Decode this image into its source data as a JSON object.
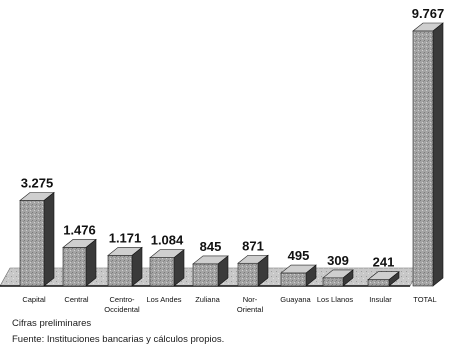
{
  "chart_data": {
    "type": "bar",
    "categories": [
      "Capital",
      "Central",
      "Centro-\nOccidental",
      "Los Andes",
      "Zuliana",
      "Nor-\nOriental",
      "Guayana",
      "Los Llanos",
      "Insular",
      "TOTAL"
    ],
    "values": [
      3275,
      1476,
      1171,
      1084,
      845,
      871,
      495,
      309,
      241,
      9767
    ],
    "value_labels": [
      "3.275",
      "1.476",
      "1.171",
      "1.084",
      "845",
      "871",
      "495",
      "309",
      "241",
      "9.767"
    ],
    "title": "",
    "xlabel": "",
    "ylabel": "",
    "style": "3d-bar",
    "grid": false,
    "legend": "none"
  },
  "notes": {
    "line1": "Cifras preliminares",
    "line2": "Fuente: Instituciones bancarias y cálculos propios."
  },
  "colors": {
    "bar_front": "#9a9a9a",
    "bar_side": "#3a3a3a",
    "bar_top": "#cfcfcf",
    "floor": "#c4c4c4"
  }
}
